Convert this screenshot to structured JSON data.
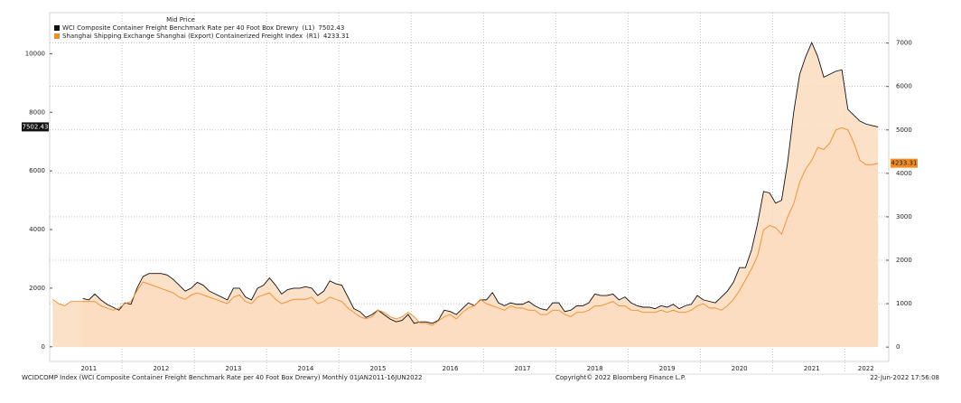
{
  "chart_data": {
    "type": "line",
    "legend_title": "Mid Price",
    "categories": [
      null,
      null,
      null,
      null,
      null,
      null,
      "2011",
      null,
      null,
      null,
      null,
      null,
      null,
      null,
      null,
      null,
      null,
      null,
      "2012",
      null,
      null,
      null,
      null,
      null,
      null,
      null,
      null,
      null,
      null,
      null,
      "2013",
      null,
      null,
      null,
      null,
      null,
      null,
      null,
      null,
      null,
      null,
      null,
      "2014",
      null,
      null,
      null,
      null,
      null,
      null,
      null,
      null,
      null,
      null,
      null,
      "2015",
      null,
      null,
      null,
      null,
      null,
      null,
      null,
      null,
      null,
      null,
      null,
      "2016",
      null,
      null,
      null,
      null,
      null,
      null,
      null,
      null,
      null,
      null,
      null,
      "2017",
      null,
      null,
      null,
      null,
      null,
      null,
      null,
      null,
      null,
      null,
      null,
      "2018",
      null,
      null,
      null,
      null,
      null,
      null,
      null,
      null,
      null,
      null,
      null,
      "2019",
      null,
      null,
      null,
      null,
      null,
      null,
      null,
      null,
      null,
      null,
      null,
      "2020",
      null,
      null,
      null,
      null,
      null,
      null,
      null,
      null,
      null,
      null,
      null,
      "2021",
      null,
      null,
      null,
      null,
      null,
      null,
      null,
      null,
      "2022",
      null,
      null
    ],
    "series": [
      {
        "name": "WCI Composite Container Freight Benchmark Rate per 40 Foot Box Drewry",
        "legend_tag": "(L1)",
        "color": "#111111",
        "fill_color": "#fbdcc0",
        "axis": "y",
        "values": [
          null,
          null,
          null,
          null,
          null,
          1650,
          1600,
          1800,
          1600,
          1450,
          1350,
          1250,
          1500,
          1450,
          2000,
          2400,
          2500,
          2500,
          2500,
          2450,
          2300,
          2100,
          1900,
          2000,
          2200,
          2100,
          1900,
          1800,
          1700,
          1600,
          2000,
          2000,
          1700,
          1600,
          2000,
          2100,
          2350,
          2100,
          1800,
          1950,
          2000,
          2000,
          2050,
          2000,
          1750,
          1900,
          2250,
          2150,
          2100,
          1700,
          1300,
          1200,
          1000,
          1100,
          1250,
          1100,
          950,
          850,
          900,
          1100,
          800,
          850,
          850,
          800,
          900,
          1250,
          1200,
          1100,
          1300,
          1500,
          1400,
          1600,
          1600,
          1850,
          1500,
          1400,
          1500,
          1450,
          1450,
          1550,
          1400,
          1300,
          1250,
          1500,
          1500,
          1200,
          1250,
          1400,
          1400,
          1500,
          1800,
          1750,
          1750,
          1800,
          1600,
          1700,
          1500,
          1400,
          1350,
          1350,
          1300,
          1400,
          1350,
          1450,
          1300,
          1400,
          1450,
          1750,
          1600,
          1550,
          1500,
          1700,
          1900,
          2200,
          2700,
          2700,
          3300,
          4200,
          5300,
          5250,
          4900,
          5000,
          6300,
          8000,
          9300,
          9900,
          10380,
          9900,
          9200,
          9300,
          9400,
          9450,
          8100,
          7900,
          7700,
          7600,
          7550,
          7502.43
        ]
      },
      {
        "name": "Shanghai Shipping Exchange Shanghai (Export) Containerized Freight Index",
        "legend_tag": "(R1)",
        "color": "#f28c28",
        "fill_color": "#fbdcc0",
        "axis": "y2",
        "values": [
          1100,
          1000,
          950,
          1050,
          1050,
          1050,
          1050,
          1050,
          950,
          900,
          850,
          900,
          1000,
          1050,
          1300,
          1500,
          1450,
          1400,
          1350,
          1300,
          1250,
          1150,
          1100,
          1200,
          1250,
          1200,
          1150,
          1100,
          1050,
          1000,
          1150,
          1200,
          1050,
          1000,
          1150,
          1200,
          1250,
          1100,
          1000,
          1050,
          1100,
          1100,
          1100,
          1150,
          1000,
          1050,
          1150,
          1100,
          1050,
          900,
          800,
          700,
          650,
          700,
          850,
          800,
          700,
          650,
          700,
          800,
          700,
          550,
          550,
          500,
          600,
          700,
          750,
          650,
          800,
          900,
          950,
          1100,
          1000,
          950,
          900,
          850,
          950,
          900,
          900,
          850,
          850,
          750,
          750,
          850,
          850,
          750,
          700,
          800,
          800,
          850,
          950,
          950,
          1000,
          1050,
          950,
          950,
          850,
          850,
          800,
          800,
          800,
          850,
          800,
          850,
          800,
          800,
          850,
          950,
          1000,
          900,
          900,
          850,
          950,
          1100,
          1300,
          1550,
          1800,
          2100,
          2700,
          2800,
          2750,
          2600,
          3000,
          3300,
          3800,
          4100,
          4300,
          4600,
          4550,
          4700,
          5000,
          5050,
          5000,
          4700,
          4300,
          4200,
          4200,
          4233.31
        ]
      }
    ],
    "ylim": [
      -500,
      11400
    ],
    "yticks": [
      0,
      2000,
      4000,
      6000,
      8000,
      10000
    ],
    "y2lim": [
      -330,
      7700
    ],
    "y2ticks": [
      0,
      1000,
      2000,
      3000,
      4000,
      5000,
      6000,
      7000
    ],
    "grid": true
  },
  "footer": {
    "left": "WCIDCOMP Index (WCI Composite Container Freight Benchmark Rate per 40 Foot Box Drewry)  Monthly 01JAN2011-16JUN2022",
    "center": "Copyright© 2022 Bloomberg Finance L.P.",
    "right": "22-Jun-2022 17:56:08"
  }
}
